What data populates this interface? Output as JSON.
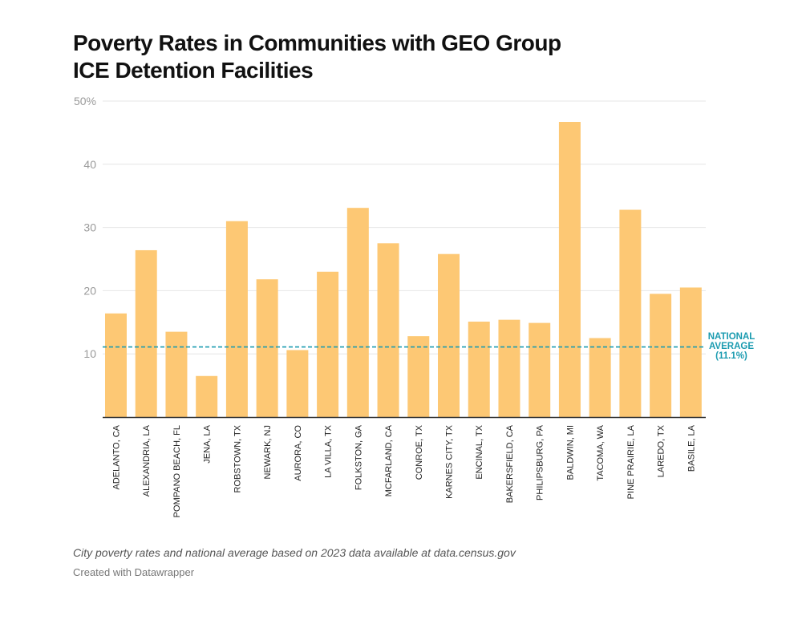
{
  "title_line1": "Poverty Rates in Communities with GEO Group",
  "title_line2": "ICE Detention Facilities",
  "notes": "City poverty rates and national average based on 2023 data available at data.census.gov",
  "credit": "Created with Datawrapper",
  "chart_data": {
    "type": "bar",
    "title": "Poverty Rates in Communities with GEO Group ICE Detention Facilities",
    "xlabel": "",
    "ylabel": "",
    "ylim": [
      0,
      50
    ],
    "yticks": [
      10,
      20,
      30,
      40,
      50
    ],
    "ytick_labels": [
      "10",
      "20",
      "30",
      "40",
      "50%"
    ],
    "grid": true,
    "bar_color": "#fdc874",
    "categories": [
      "ADELANTO, CA",
      "ALEXANDRIA, LA",
      "POMPANO BEACH, FL",
      "JENA, LA",
      "ROBSTOWN, TX",
      "NEWARK, NJ",
      "AURORA, CO",
      "LA VILLA, TX",
      "FOLKSTON, GA",
      "MCFARLAND, CA",
      "CONROE, TX",
      "KARNES CITY, TX",
      "ENCINAL, TX",
      "BAKERSFIELD, CA",
      "PHILIPSBURG, PA",
      "BALDWIN, MI",
      "TACOMA, WA",
      "PINE PRAIRIE, LA",
      "LAREDO, TX",
      "BASILE, LA"
    ],
    "values": [
      16.4,
      26.4,
      13.5,
      6.5,
      31.0,
      21.8,
      10.6,
      23.0,
      33.1,
      27.5,
      12.8,
      25.8,
      15.1,
      15.4,
      14.9,
      46.7,
      12.5,
      32.8,
      19.5,
      20.5
    ],
    "reference_line": {
      "value": 11.1,
      "label_lines": [
        "NATIONAL",
        "AVERAGE",
        "(11.1%)"
      ],
      "color": "#1a9bb0",
      "style": "dashed"
    }
  }
}
